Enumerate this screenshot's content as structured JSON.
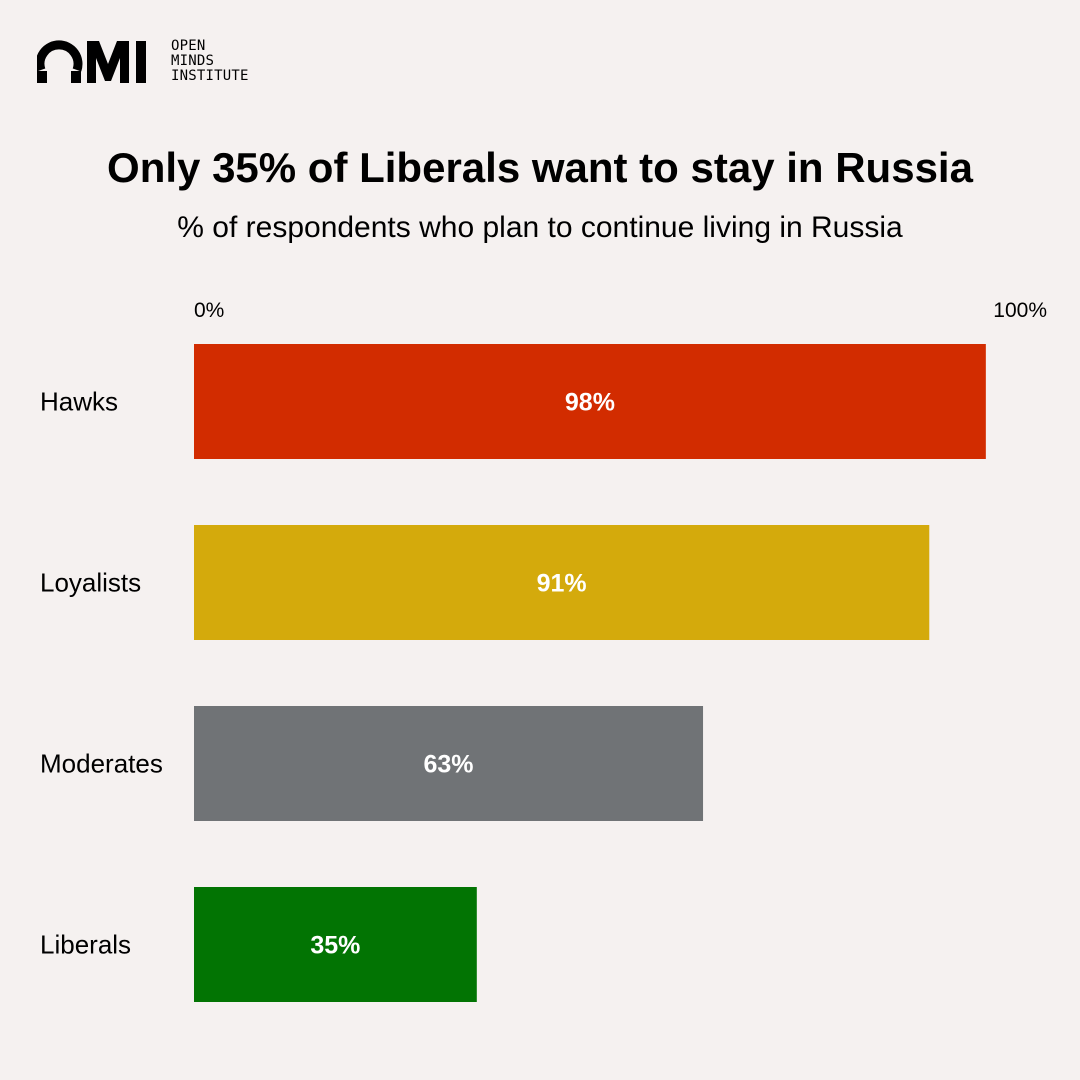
{
  "brand": {
    "logo_mark": "OMI",
    "wordmark_lines": [
      "OPEN",
      "MINDS",
      "INSTITUTE"
    ]
  },
  "chart_data": {
    "type": "bar",
    "orientation": "horizontal",
    "title": "Only 35% of Liberals want to stay in Russia",
    "subtitle": "% of respondents who plan to continue living in Russia",
    "xlim": [
      0,
      100
    ],
    "tick_labels": [
      "0%",
      "100%"
    ],
    "categories": [
      "Hawks",
      "Loyalists",
      "Moderates",
      "Liberals"
    ],
    "values": [
      98,
      91,
      63,
      35
    ],
    "data_labels": [
      "98%",
      "91%",
      "63%",
      "35%"
    ],
    "colors": [
      "#d22c00",
      "#d4aa0c",
      "#707376",
      "#027403"
    ],
    "grid": false,
    "legend": "none"
  }
}
